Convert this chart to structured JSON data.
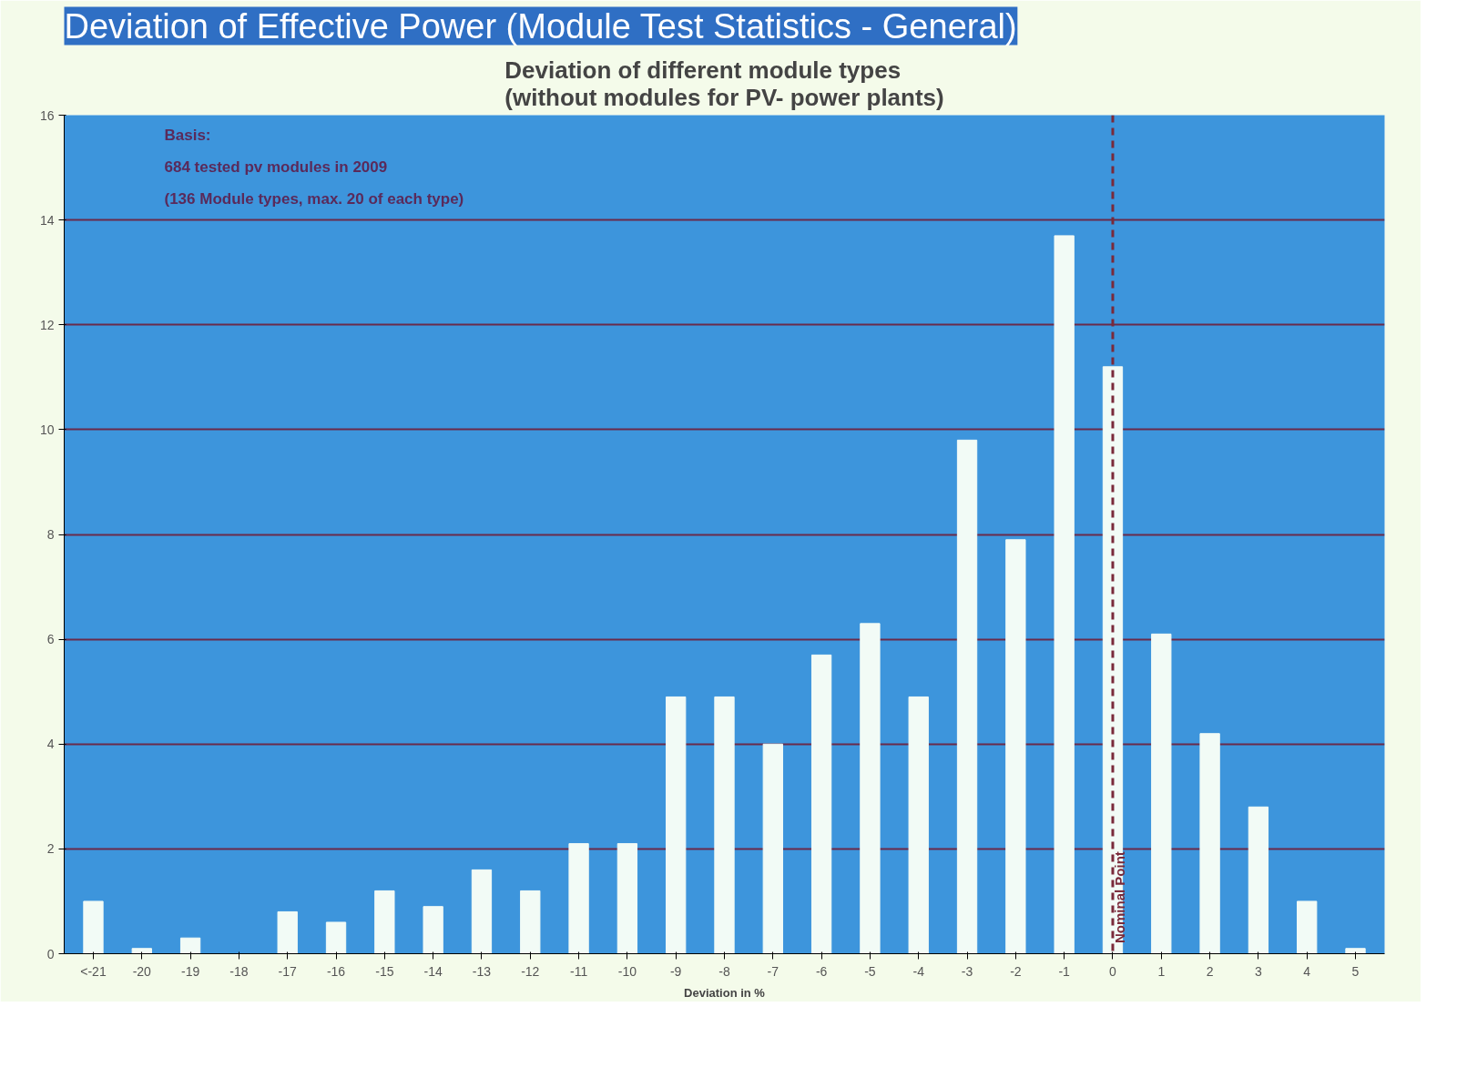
{
  "chart_data": {
    "type": "bar",
    "title": "Deviation of Effective Power (Module Test Statistics - General)",
    "subtitle": "Deviation of different module types\n(without modules for PV- power plants)",
    "xlabel": "Deviation in %",
    "categories": [
      "<-21",
      "-20",
      "-19",
      "-18",
      "-17",
      "-16",
      "-15",
      "-14",
      "-13",
      "-12",
      "-11",
      "-10",
      "-9",
      "-8",
      "-7",
      "-6",
      "-5",
      "-4",
      "-3",
      "-2",
      "-1",
      "0",
      "1",
      "2",
      "3",
      "4",
      "5"
    ],
    "values": [
      1.0,
      0.1,
      0.3,
      0,
      0.8,
      0.6,
      1.2,
      0.9,
      1.6,
      1.2,
      2.1,
      2.1,
      4.9,
      4.9,
      4.0,
      5.7,
      6.3,
      4.9,
      9.8,
      7.9,
      13.7,
      11.2,
      6.1,
      4.2,
      2.8,
      1.0,
      0.1
    ],
    "color": "#f2fbf6",
    "ylim": [
      0,
      16
    ],
    "yticks": [
      0,
      2,
      4,
      6,
      8,
      10,
      12,
      14,
      16
    ],
    "grid": "y",
    "ref_lines": [
      {
        "axis": "x",
        "value": "0",
        "label": "Nominal Point",
        "color": "#7a2a3a",
        "line_style": "dashed"
      }
    ],
    "annotations": [
      "Basis:",
      "684 tested pv modules in 2009",
      "(136 Module types, max. 20 of each type)"
    ]
  }
}
